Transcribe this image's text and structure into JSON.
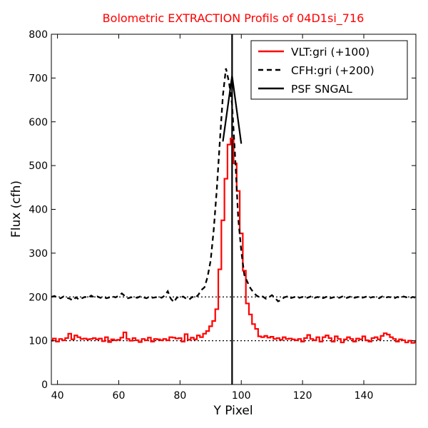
{
  "chart_data": {
    "type": "line",
    "title": "Bolometric EXTRACTION Profils of 04D1si_716",
    "title_color": "#ff0000",
    "xlabel": "Y Pixel",
    "ylabel": "Flux (cfh)",
    "xlim": [
      38,
      157
    ],
    "ylim": [
      0,
      800
    ],
    "xticks": [
      40,
      60,
      80,
      100,
      120,
      140
    ],
    "yticks": [
      0,
      100,
      200,
      300,
      400,
      500,
      600,
      700,
      800
    ],
    "grid": false,
    "legend_position": "top-right",
    "reference_lines": [
      {
        "orientation": "horizontal",
        "y": 100,
        "style": "dotted",
        "color": "#000000"
      },
      {
        "orientation": "horizontal",
        "y": 200,
        "style": "dotted",
        "color": "#000000"
      },
      {
        "orientation": "vertical",
        "x": 97,
        "style": "solid",
        "color": "#000000"
      }
    ],
    "series": [
      {
        "name": "VLT:gri (+100)",
        "color": "#ff0000",
        "style": "steps",
        "x": [
          38,
          39,
          40,
          41,
          42,
          43,
          44,
          45,
          46,
          47,
          48,
          49,
          50,
          51,
          52,
          53,
          54,
          55,
          56,
          57,
          58,
          59,
          60,
          61,
          62,
          63,
          64,
          65,
          66,
          67,
          68,
          69,
          70,
          71,
          72,
          73,
          74,
          75,
          76,
          77,
          78,
          79,
          80,
          81,
          82,
          83,
          84,
          85,
          86,
          87,
          88,
          89,
          90,
          91,
          92,
          93,
          94,
          95,
          96,
          97,
          98,
          99,
          100,
          101,
          102,
          103,
          104,
          105,
          106,
          107,
          108,
          109,
          110,
          111,
          112,
          113,
          114,
          115,
          116,
          117,
          118,
          119,
          120,
          121,
          122,
          123,
          124,
          125,
          126,
          127,
          128,
          129,
          130,
          131,
          132,
          133,
          134,
          135,
          136,
          137,
          138,
          139,
          140,
          141,
          142,
          143,
          144,
          145,
          146,
          147,
          148,
          149,
          150,
          151,
          152,
          153,
          154,
          155,
          156,
          157
        ],
        "y": [
          100,
          105,
          98,
          104,
          101,
          106,
          116,
          103,
          112,
          108,
          104,
          105,
          103,
          104,
          106,
          103,
          105,
          99,
          108,
          97,
          103,
          101,
          102,
          107,
          119,
          104,
          100,
          106,
          101,
          97,
          104,
          101,
          107,
          98,
          104,
          103,
          101,
          104,
          101,
          108,
          107,
          105,
          106,
          98,
          115,
          102,
          107,
          103,
          112,
          108,
          116,
          122,
          133,
          145,
          172,
          263,
          375,
          470,
          548,
          562,
          505,
          442,
          345,
          260,
          185,
          160,
          138,
          127,
          110,
          108,
          111,
          107,
          109,
          104,
          106,
          102,
          108,
          104,
          105,
          103,
          101,
          104,
          98,
          106,
          113,
          104,
          101,
          108,
          98,
          108,
          112,
          106,
          98,
          110,
          104,
          96,
          103,
          108,
          104,
          98,
          105,
          103,
          110,
          101,
          98,
          106,
          108,
          103,
          111,
          117,
          114,
          108,
          104,
          98,
          103,
          101,
          96,
          100,
          95,
          97
        ]
      },
      {
        "name": "CFH:gri (+200)",
        "color": "#000000",
        "style": "dashed",
        "x": [
          38,
          39,
          40,
          41,
          42,
          43,
          44,
          45,
          46,
          47,
          48,
          49,
          50,
          51,
          52,
          53,
          54,
          55,
          56,
          57,
          58,
          59,
          60,
          61,
          62,
          63,
          64,
          65,
          66,
          67,
          68,
          69,
          70,
          71,
          72,
          73,
          74,
          75,
          76,
          77,
          78,
          79,
          80,
          81,
          82,
          83,
          84,
          85,
          86,
          87,
          88,
          89,
          90,
          91,
          92,
          93,
          94,
          95,
          96,
          97,
          98,
          99,
          100,
          101,
          102,
          103,
          104,
          105,
          106,
          107,
          108,
          109,
          110,
          111,
          112,
          113,
          114,
          115,
          116,
          117,
          118,
          119,
          120,
          121,
          122,
          123,
          124,
          125,
          126,
          127,
          128,
          129,
          130,
          131,
          132,
          133,
          134,
          135,
          136,
          137,
          138,
          139,
          140,
          141,
          142,
          143,
          144,
          145,
          146,
          147,
          148,
          149,
          150,
          151,
          152,
          153,
          154,
          155,
          156,
          157
        ],
        "y": [
          200,
          202,
          199,
          197,
          201,
          198,
          196,
          192,
          199,
          194,
          197,
          200,
          198,
          203,
          199,
          201,
          198,
          200,
          197,
          199,
          201,
          199,
          203,
          208,
          202,
          197,
          199,
          200,
          198,
          201,
          199,
          197,
          200,
          198,
          199,
          201,
          198,
          203,
          213,
          196,
          188,
          199,
          198,
          201,
          196,
          194,
          200,
          198,
          205,
          216,
          222,
          246,
          283,
          353,
          445,
          555,
          660,
          722,
          690,
          640,
          520,
          380,
          305,
          250,
          234,
          220,
          210,
          203,
          199,
          201,
          196,
          199,
          204,
          198,
          190,
          193,
          199,
          201,
          197,
          199,
          201,
          198,
          200,
          197,
          199,
          202,
          198,
          200,
          196,
          198,
          201,
          197,
          199,
          200,
          198,
          201,
          197,
          199,
          202,
          198,
          200,
          197,
          199,
          201,
          198,
          200,
          199,
          197,
          201,
          198,
          200,
          199,
          197,
          200,
          198,
          201,
          199,
          197,
          200,
          198
        ]
      },
      {
        "name": "PSF SNGAL",
        "color": "#000000",
        "style": "solid",
        "x": [
          94,
          97,
          100
        ],
        "y": [
          555,
          705,
          550
        ]
      }
    ]
  }
}
